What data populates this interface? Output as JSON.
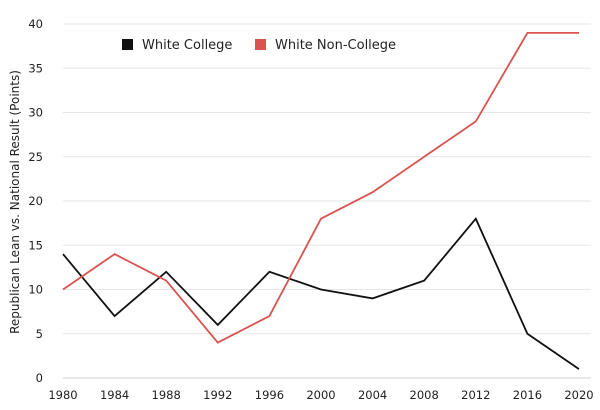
{
  "chart_data": {
    "type": "line",
    "title": "",
    "xlabel": "",
    "ylabel": "Republican Lean vs. National Result (Points)",
    "x": [
      1980,
      1984,
      1988,
      1992,
      1996,
      2000,
      2004,
      2008,
      2012,
      2016,
      2020
    ],
    "xticks": [
      "1980",
      "1984",
      "1988",
      "1992",
      "1996",
      "2000",
      "2004",
      "2008",
      "2012",
      "2016",
      "2020"
    ],
    "yticks": [
      "0",
      "5",
      "10",
      "15",
      "20",
      "25",
      "30",
      "35",
      "40"
    ],
    "ylim": [
      0,
      40
    ],
    "xlim": [
      1980,
      2020
    ],
    "grid": true,
    "legend_position": "top-left",
    "series": [
      {
        "name": "White College",
        "color": "#111111",
        "values": [
          14,
          7,
          12,
          6,
          12,
          10,
          9,
          11,
          18,
          5,
          1
        ]
      },
      {
        "name": "White Non-College",
        "color": "#d9534f",
        "values": [
          10,
          14,
          11,
          4,
          7,
          18,
          21,
          25,
          29,
          39,
          39
        ]
      }
    ]
  }
}
